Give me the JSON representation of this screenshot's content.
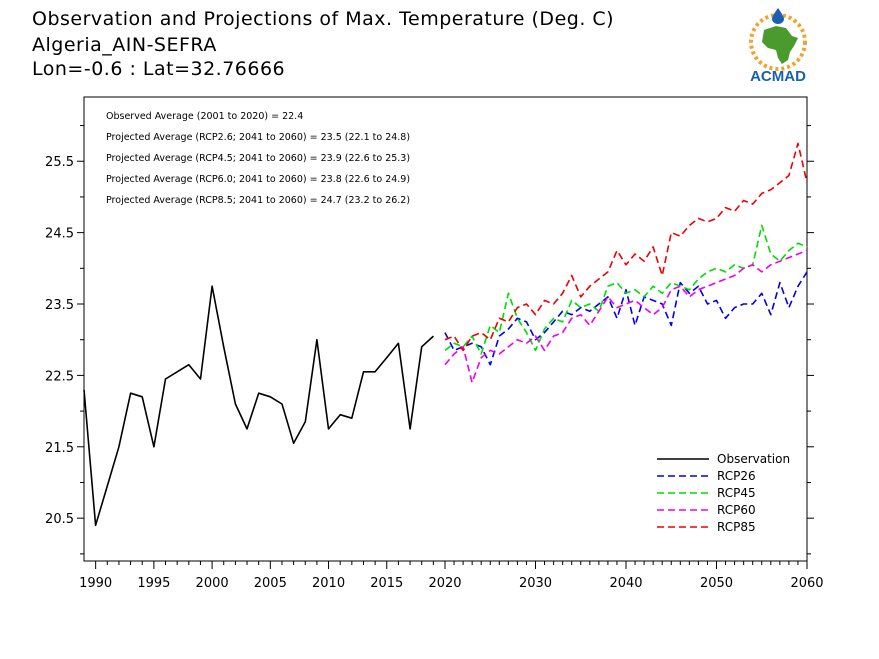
{
  "header": {
    "title": "Observation and Projections of Max. Temperature (Deg. C)",
    "station": "Algeria_AIN-SEFRA",
    "coords": "Lon=-0.6 : Lat=32.76666"
  },
  "logo": {
    "text": "ACMAD",
    "colors": {
      "green": "#4a9a2e",
      "orange": "#f2a22a",
      "blue": "#1b5fb0"
    }
  },
  "annotations": [
    "Observed Average (2001 to 2020) = 22.4",
    "Projected Average (RCP2.6; 2041 to 2060) = 23.5 (22.1 to 24.8)",
    "Projected Average (RCP4.5; 2041 to 2060) = 23.9 (22.6 to 25.3)",
    "Projected Average (RCP6.0; 2041 to 2060) = 23.8 (22.6 to 24.9)",
    "Projected Average (RCP8.5; 2041 to 2060) = 24.7 (23.2 to 26.2)"
  ],
  "chart_data": {
    "type": "line",
    "title": "Observation and Projections of Max. Temperature (Deg. C)",
    "xlim": [
      1989,
      2060
    ],
    "ylim": [
      19.9,
      26.4
    ],
    "xticks": [
      1990,
      1995,
      2000,
      2005,
      2010,
      2015,
      2020,
      2030,
      2040,
      2050,
      2060
    ],
    "yticks": [
      20.5,
      21.5,
      22.5,
      23.5,
      24.5,
      25.5
    ],
    "xtick_labels": [
      "1990",
      "1995",
      "2000",
      "2005",
      "2010",
      "2015",
      "2020",
      "2030",
      "2040",
      "2050",
      "2060"
    ],
    "ytick_labels": [
      "20.5",
      "21.5",
      "22.5",
      "23.5",
      "24.5",
      "25.5"
    ],
    "legend_position": "bottom-right",
    "series": [
      {
        "name": "Observation",
        "color": "#000000",
        "dashed": false,
        "x": [
          1989,
          1990,
          1991,
          1992,
          1993,
          1994,
          1995,
          1996,
          1997,
          1998,
          1999,
          2000,
          2001,
          2002,
          2003,
          2004,
          2005,
          2006,
          2007,
          2008,
          2009,
          2010,
          2011,
          2012,
          2013,
          2014,
          2015,
          2016,
          2017,
          2018,
          2019
        ],
        "y": [
          22.3,
          20.4,
          20.95,
          21.5,
          22.25,
          22.2,
          21.5,
          22.45,
          22.55,
          22.65,
          22.45,
          23.75,
          22.9,
          22.1,
          21.75,
          22.25,
          22.2,
          22.1,
          21.55,
          21.85,
          23.0,
          21.75,
          21.95,
          21.9,
          22.55,
          22.55,
          22.75,
          22.95,
          21.75,
          22.9,
          23.05
        ]
      },
      {
        "name": "RCP26",
        "color": "#0000ee",
        "dashed": true,
        "x": [
          2020,
          2021,
          2022,
          2023,
          2024,
          2025,
          2026,
          2027,
          2028,
          2029,
          2030,
          2031,
          2032,
          2033,
          2034,
          2035,
          2036,
          2037,
          2038,
          2039,
          2040,
          2041,
          2042,
          2043,
          2044,
          2045,
          2046,
          2047,
          2048,
          2049,
          2050,
          2051,
          2052,
          2053,
          2054,
          2055,
          2056,
          2057,
          2058,
          2059,
          2060
        ],
        "y": [
          23.1,
          22.85,
          22.9,
          22.95,
          22.9,
          22.65,
          23.05,
          23.15,
          23.3,
          23.25,
          23.0,
          23.1,
          23.25,
          23.4,
          23.35,
          23.45,
          23.4,
          23.5,
          23.6,
          23.3,
          23.7,
          23.2,
          23.6,
          23.55,
          23.5,
          23.2,
          23.8,
          23.65,
          23.75,
          23.5,
          23.55,
          23.3,
          23.45,
          23.5,
          23.5,
          23.65,
          23.35,
          23.8,
          23.45,
          23.75,
          23.95
        ]
      },
      {
        "name": "RCP45",
        "color": "#00dd00",
        "dashed": true,
        "x": [
          2020,
          2021,
          2022,
          2023,
          2024,
          2025,
          2026,
          2027,
          2028,
          2029,
          2030,
          2031,
          2032,
          2033,
          2034,
          2035,
          2036,
          2037,
          2038,
          2039,
          2040,
          2041,
          2042,
          2043,
          2044,
          2045,
          2046,
          2047,
          2048,
          2049,
          2050,
          2051,
          2052,
          2053,
          2054,
          2055,
          2056,
          2057,
          2058,
          2059,
          2060
        ],
        "y": [
          22.85,
          22.95,
          22.9,
          23.05,
          22.8,
          23.2,
          23.1,
          23.65,
          23.3,
          23.1,
          22.85,
          23.15,
          23.3,
          23.25,
          23.55,
          23.45,
          23.5,
          23.4,
          23.75,
          23.8,
          23.65,
          23.7,
          23.6,
          23.75,
          23.65,
          23.8,
          23.75,
          23.7,
          23.85,
          23.95,
          24.0,
          23.95,
          24.05,
          24.0,
          24.05,
          24.6,
          24.2,
          24.1,
          24.25,
          24.35,
          24.3
        ]
      },
      {
        "name": "RCP60",
        "color": "#ee00ee",
        "dashed": true,
        "x": [
          2020,
          2021,
          2022,
          2023,
          2024,
          2025,
          2026,
          2027,
          2028,
          2029,
          2030,
          2031,
          2032,
          2033,
          2034,
          2035,
          2036,
          2037,
          2038,
          2039,
          2040,
          2041,
          2042,
          2043,
          2044,
          2045,
          2046,
          2047,
          2048,
          2049,
          2050,
          2051,
          2052,
          2053,
          2054,
          2055,
          2056,
          2057,
          2058,
          2059,
          2060
        ],
        "y": [
          22.65,
          22.8,
          22.9,
          22.4,
          22.75,
          22.85,
          22.8,
          22.9,
          23.0,
          22.95,
          23.05,
          22.85,
          23.05,
          23.1,
          23.3,
          23.35,
          23.2,
          23.4,
          23.6,
          23.45,
          23.5,
          23.55,
          23.45,
          23.35,
          23.45,
          23.7,
          23.75,
          23.6,
          23.7,
          23.75,
          23.8,
          23.85,
          23.9,
          24.0,
          24.05,
          23.95,
          24.05,
          24.1,
          24.15,
          24.2,
          24.25
        ]
      },
      {
        "name": "RCP85",
        "color": "#ee0000",
        "dashed": true,
        "x": [
          2020,
          2021,
          2022,
          2023,
          2024,
          2025,
          2026,
          2027,
          2028,
          2029,
          2030,
          2031,
          2032,
          2033,
          2034,
          2035,
          2036,
          2037,
          2038,
          2039,
          2040,
          2041,
          2042,
          2043,
          2044,
          2045,
          2046,
          2047,
          2048,
          2049,
          2050,
          2051,
          2052,
          2053,
          2054,
          2055,
          2056,
          2057,
          2058,
          2059,
          2060
        ],
        "y": [
          23.0,
          23.05,
          22.85,
          23.05,
          23.1,
          23.0,
          23.3,
          23.25,
          23.45,
          23.5,
          23.35,
          23.55,
          23.5,
          23.65,
          23.9,
          23.6,
          23.75,
          23.85,
          23.95,
          24.25,
          24.05,
          24.2,
          24.1,
          24.3,
          23.9,
          24.5,
          24.45,
          24.6,
          24.7,
          24.65,
          24.7,
          24.85,
          24.8,
          24.95,
          24.9,
          25.05,
          25.1,
          25.2,
          25.3,
          25.75,
          25.2
        ]
      }
    ]
  }
}
